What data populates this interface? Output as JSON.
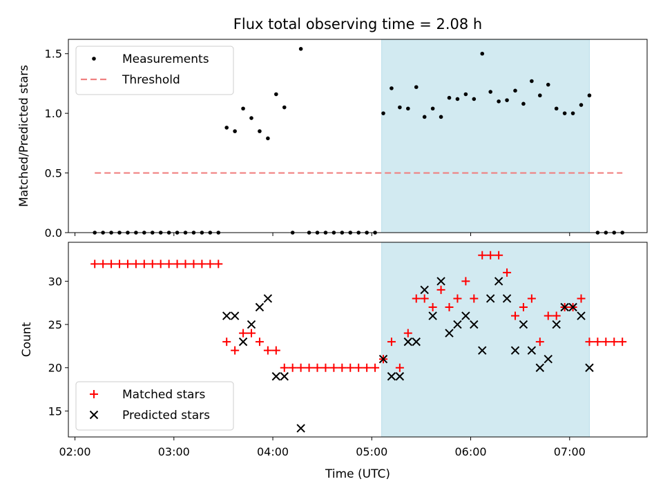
{
  "chart_data": [
    {
      "type": "scatter",
      "title": "Flux total observing time = 2.08 h",
      "ylabel": "Matched/Predicted stars",
      "xlabel": "",
      "ylim": [
        0,
        1.62
      ],
      "xlim": [
        "01:56",
        "07:47"
      ],
      "yticks": [
        "0.0",
        "0.5",
        "1.0",
        "1.5"
      ],
      "grid": false,
      "legend_position": "top-left",
      "shaded_region": {
        "x_start": "05:06",
        "x_end": "07:12",
        "color": "#add8e6"
      },
      "series": [
        {
          "name": "Measurements",
          "marker": "dot",
          "color": "#000000",
          "points": [
            [
              "02:12",
              0
            ],
            [
              "02:17",
              0
            ],
            [
              "02:22",
              0
            ],
            [
              "02:27",
              0
            ],
            [
              "02:32",
              0
            ],
            [
              "02:37",
              0
            ],
            [
              "02:42",
              0
            ],
            [
              "02:47",
              0
            ],
            [
              "02:52",
              0
            ],
            [
              "02:57",
              0
            ],
            [
              "03:02",
              0
            ],
            [
              "03:07",
              0
            ],
            [
              "03:12",
              0
            ],
            [
              "03:17",
              0
            ],
            [
              "03:22",
              0
            ],
            [
              "03:27",
              0
            ],
            [
              "03:32",
              0.88
            ],
            [
              "03:37",
              0.85
            ],
            [
              "03:42",
              1.04
            ],
            [
              "03:47",
              0.96
            ],
            [
              "03:52",
              0.85
            ],
            [
              "03:57",
              0.79
            ],
            [
              "04:02",
              1.16
            ],
            [
              "04:07",
              1.05
            ],
            [
              "04:12",
              0
            ],
            [
              "04:17",
              1.54
            ],
            [
              "04:22",
              0
            ],
            [
              "04:27",
              0
            ],
            [
              "04:32",
              0
            ],
            [
              "04:37",
              0
            ],
            [
              "04:42",
              0
            ],
            [
              "04:47",
              0
            ],
            [
              "04:52",
              0
            ],
            [
              "04:57",
              0
            ],
            [
              "05:02",
              0
            ],
            [
              "05:07",
              1.0
            ],
            [
              "05:12",
              1.21
            ],
            [
              "05:17",
              1.05
            ],
            [
              "05:22",
              1.04
            ],
            [
              "05:27",
              1.22
            ],
            [
              "05:32",
              0.97
            ],
            [
              "05:37",
              1.04
            ],
            [
              "05:42",
              0.97
            ],
            [
              "05:47",
              1.13
            ],
            [
              "05:52",
              1.12
            ],
            [
              "05:57",
              1.16
            ],
            [
              "06:02",
              1.12
            ],
            [
              "06:07",
              1.5
            ],
            [
              "06:12",
              1.18
            ],
            [
              "06:17",
              1.1
            ],
            [
              "06:22",
              1.11
            ],
            [
              "06:27",
              1.19
            ],
            [
              "06:32",
              1.08
            ],
            [
              "06:37",
              1.27
            ],
            [
              "06:42",
              1.15
            ],
            [
              "06:47",
              1.24
            ],
            [
              "06:52",
              1.04
            ],
            [
              "06:57",
              1.0
            ],
            [
              "07:02",
              1.0
            ],
            [
              "07:07",
              1.07
            ],
            [
              "07:12",
              1.15
            ],
            [
              "07:17",
              0
            ],
            [
              "07:22",
              0
            ],
            [
              "07:27",
              0
            ],
            [
              "07:32",
              0
            ]
          ]
        },
        {
          "name": "Threshold",
          "marker": "dashed-line",
          "color": "#f08080",
          "points": [
            [
              "02:12",
              0.5
            ],
            [
              "07:32",
              0.5
            ]
          ]
        }
      ]
    },
    {
      "type": "scatter",
      "title": "",
      "ylabel": "Count",
      "xlabel": "Time (UTC)",
      "ylim": [
        12,
        34.5
      ],
      "xlim": [
        "01:56",
        "07:47"
      ],
      "yticks": [
        "15",
        "20",
        "25",
        "30"
      ],
      "xticks": [
        "02:00",
        "03:00",
        "04:00",
        "05:00",
        "06:00",
        "07:00"
      ],
      "grid": false,
      "legend_position": "bottom-left",
      "shaded_region": {
        "x_start": "05:06",
        "x_end": "07:12",
        "color": "#add8e6"
      },
      "series": [
        {
          "name": "Matched stars",
          "marker": "plus",
          "color": "#ff0000",
          "points": [
            [
              "02:12",
              32
            ],
            [
              "02:17",
              32
            ],
            [
              "02:22",
              32
            ],
            [
              "02:27",
              32
            ],
            [
              "02:32",
              32
            ],
            [
              "02:37",
              32
            ],
            [
              "02:42",
              32
            ],
            [
              "02:47",
              32
            ],
            [
              "02:52",
              32
            ],
            [
              "02:57",
              32
            ],
            [
              "03:02",
              32
            ],
            [
              "03:07",
              32
            ],
            [
              "03:12",
              32
            ],
            [
              "03:17",
              32
            ],
            [
              "03:22",
              32
            ],
            [
              "03:27",
              32
            ],
            [
              "03:32",
              23
            ],
            [
              "03:37",
              22
            ],
            [
              "03:42",
              24
            ],
            [
              "03:47",
              24
            ],
            [
              "03:52",
              23
            ],
            [
              "03:57",
              22
            ],
            [
              "04:02",
              22
            ],
            [
              "04:07",
              20
            ],
            [
              "04:12",
              20
            ],
            [
              "04:17",
              20
            ],
            [
              "04:22",
              20
            ],
            [
              "04:27",
              20
            ],
            [
              "04:32",
              20
            ],
            [
              "04:37",
              20
            ],
            [
              "04:42",
              20
            ],
            [
              "04:47",
              20
            ],
            [
              "04:52",
              20
            ],
            [
              "04:57",
              20
            ],
            [
              "05:02",
              20
            ],
            [
              "05:07",
              21
            ],
            [
              "05:12",
              23
            ],
            [
              "05:17",
              20
            ],
            [
              "05:22",
              24
            ],
            [
              "05:27",
              28
            ],
            [
              "05:32",
              28
            ],
            [
              "05:37",
              27
            ],
            [
              "05:42",
              29
            ],
            [
              "05:47",
              27
            ],
            [
              "05:52",
              28
            ],
            [
              "05:57",
              30
            ],
            [
              "06:02",
              28
            ],
            [
              "06:07",
              33
            ],
            [
              "06:12",
              33
            ],
            [
              "06:17",
              33
            ],
            [
              "06:22",
              31
            ],
            [
              "06:27",
              26
            ],
            [
              "06:32",
              27
            ],
            [
              "06:37",
              28
            ],
            [
              "06:42",
              23
            ],
            [
              "06:47",
              26
            ],
            [
              "06:52",
              26
            ],
            [
              "06:57",
              27
            ],
            [
              "07:02",
              27
            ],
            [
              "07:07",
              28
            ],
            [
              "07:12",
              23
            ],
            [
              "07:17",
              23
            ],
            [
              "07:22",
              23
            ],
            [
              "07:27",
              23
            ],
            [
              "07:32",
              23
            ]
          ]
        },
        {
          "name": "Predicted stars",
          "marker": "x",
          "color": "#000000",
          "points": [
            [
              "03:32",
              26
            ],
            [
              "03:37",
              26
            ],
            [
              "03:42",
              23
            ],
            [
              "03:47",
              25
            ],
            [
              "03:52",
              27
            ],
            [
              "03:57",
              28
            ],
            [
              "04:02",
              19
            ],
            [
              "04:07",
              19
            ],
            [
              "04:17",
              13
            ],
            [
              "05:07",
              21
            ],
            [
              "05:12",
              19
            ],
            [
              "05:17",
              19
            ],
            [
              "05:22",
              23
            ],
            [
              "05:27",
              23
            ],
            [
              "05:32",
              29
            ],
            [
              "05:37",
              26
            ],
            [
              "05:42",
              30
            ],
            [
              "05:47",
              24
            ],
            [
              "05:52",
              25
            ],
            [
              "05:57",
              26
            ],
            [
              "06:02",
              25
            ],
            [
              "06:07",
              22
            ],
            [
              "06:12",
              28
            ],
            [
              "06:17",
              30
            ],
            [
              "06:22",
              28
            ],
            [
              "06:27",
              22
            ],
            [
              "06:32",
              25
            ],
            [
              "06:37",
              22
            ],
            [
              "06:42",
              20
            ],
            [
              "06:47",
              21
            ],
            [
              "06:52",
              25
            ],
            [
              "06:57",
              27
            ],
            [
              "07:02",
              27
            ],
            [
              "07:07",
              26
            ],
            [
              "07:12",
              20
            ]
          ]
        }
      ]
    }
  ]
}
